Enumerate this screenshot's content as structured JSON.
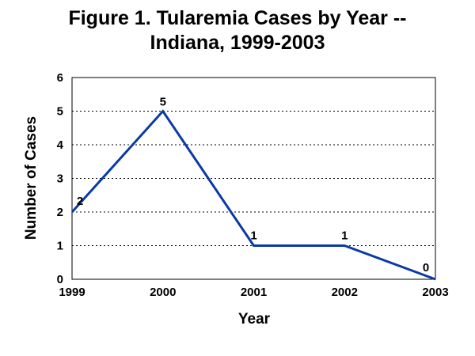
{
  "chart_data": {
    "type": "line",
    "title_lines": [
      "Figure 1. Tularemia Cases by Year --",
      "Indiana, 1999-2003"
    ],
    "xlabel": "Year",
    "ylabel": "Number of Cases",
    "categories": [
      "1999",
      "2000",
      "2001",
      "2002",
      "2003"
    ],
    "series": [
      {
        "values": [
          2,
          5,
          1,
          1,
          0
        ],
        "color": "#0a3aa6"
      }
    ],
    "data_labels": [
      "2",
      "5",
      "1",
      "1",
      "0"
    ],
    "ylim": [
      0,
      6
    ],
    "yticks": [
      "0",
      "1",
      "2",
      "3",
      "4",
      "5",
      "6"
    ],
    "grid": "horizontal dotted",
    "legend": "none"
  }
}
